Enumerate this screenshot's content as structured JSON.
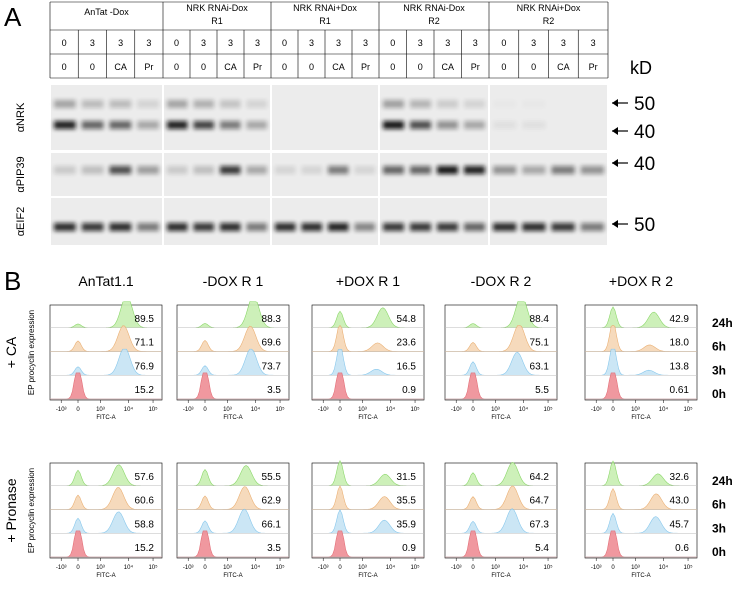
{
  "panel_a": {
    "label": "A",
    "groups": [
      {
        "title": [
          "AnTat -Dox"
        ],
        "times": [
          "0",
          "3",
          "3",
          "3"
        ],
        "treatments": [
          "0",
          "0",
          "CA",
          "Pr"
        ]
      },
      {
        "title": [
          "NRK RNAi-Dox",
          "R1"
        ],
        "times": [
          "0",
          "3",
          "3",
          "3"
        ],
        "treatments": [
          "0",
          "0",
          "CA",
          "Pr"
        ]
      },
      {
        "title": [
          "NRK RNAi+Dox",
          "R1"
        ],
        "times": [
          "0",
          "3",
          "3",
          "3"
        ],
        "treatments": [
          "0",
          "0",
          "CA",
          "Pr"
        ]
      },
      {
        "title": [
          "NRK RNAi-Dox",
          "R2"
        ],
        "times": [
          "0",
          "3",
          "3",
          "3"
        ],
        "treatments": [
          "0",
          "0",
          "CA",
          "Pr"
        ]
      },
      {
        "title": [
          "NRK RNAi+Dox",
          "R2"
        ],
        "times": [
          "0",
          "3",
          "3",
          "3"
        ],
        "treatments": [
          "0",
          "0",
          "CA",
          "Pr"
        ]
      }
    ],
    "blots": [
      "αNRK",
      "αPIP39",
      "αEIF2"
    ],
    "kd_unit": "kD",
    "kd_markers": [
      "50",
      "40",
      "40",
      "50"
    ]
  },
  "panel_b": {
    "label": "B",
    "columns": [
      "AnTat1.1",
      "-DOX R 1",
      "+DOX R 1",
      "-DOX R 2",
      "+DOX R 2"
    ],
    "y_label": "EP procyclin expression",
    "x_ticks": [
      "-10³",
      "0",
      "10³",
      "10⁴",
      "10⁵"
    ],
    "x_label": "FITC-A",
    "times": [
      "24h",
      "6h",
      "3h",
      "0h"
    ],
    "rows": [
      {
        "label": "+ CA",
        "values": [
          [
            "89.5",
            "71.1",
            "76.9",
            "15.2"
          ],
          [
            "88.3",
            "69.6",
            "73.7",
            "3.5"
          ],
          [
            "54.8",
            "23.6",
            "16.5",
            "0.9"
          ],
          [
            "88.4",
            "75.1",
            "63.1",
            "5.5"
          ],
          [
            "42.9",
            "18.0",
            "13.8",
            "0.61"
          ]
        ]
      },
      {
        "label": "+ Pronase",
        "values": [
          [
            "57.6",
            "60.6",
            "58.8",
            "15.2"
          ],
          [
            "55.5",
            "62.9",
            "66.1",
            "3.5"
          ],
          [
            "31.5",
            "35.5",
            "35.9",
            "0.9"
          ],
          [
            "64.2",
            "64.7",
            "67.3",
            "5.4"
          ],
          [
            "32.6",
            "43.0",
            "45.7",
            "0.6"
          ]
        ]
      }
    ]
  }
}
